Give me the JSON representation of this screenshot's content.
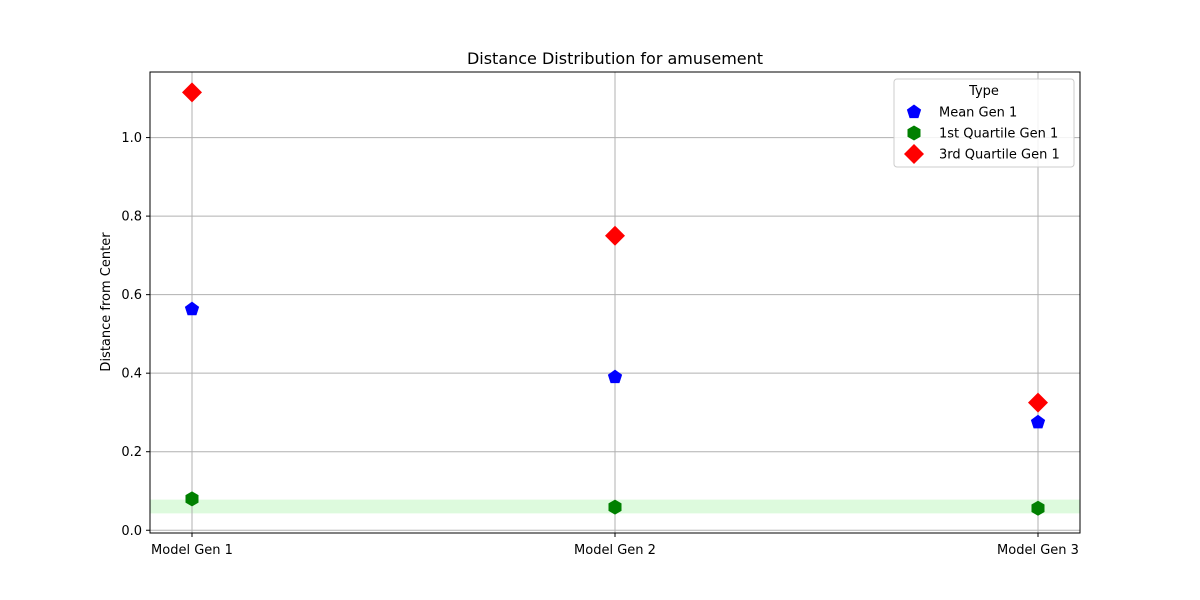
{
  "chart_data": {
    "type": "scatter",
    "title": "Distance Distribution for amusement",
    "xlabel": "",
    "ylabel": "Distance from Center",
    "categories": [
      "Model Gen 1",
      "Model Gen 2",
      "Model Gen 3"
    ],
    "ylim": [
      -0.007,
      1.167
    ],
    "yticks": [
      "0.0",
      "0.2",
      "0.4",
      "0.6",
      "0.8",
      "1.0"
    ],
    "grid": true,
    "legend": {
      "title": "Type",
      "placement": "top-right"
    },
    "band": {
      "y0": 0.043,
      "y1": 0.078,
      "color": "#90ee90"
    },
    "series": [
      {
        "name": "Mean Gen 1",
        "marker": "pentagon",
        "color": "#0000ff",
        "values": [
          0.563,
          0.39,
          0.275
        ]
      },
      {
        "name": "1st Quartile Gen 1",
        "marker": "hexagon",
        "color": "#008000",
        "values": [
          0.08,
          0.059,
          0.056
        ]
      },
      {
        "name": "3rd Quartile Gen 1",
        "marker": "diamond",
        "color": "#ff0000",
        "values": [
          1.115,
          0.75,
          0.325
        ]
      }
    ]
  }
}
